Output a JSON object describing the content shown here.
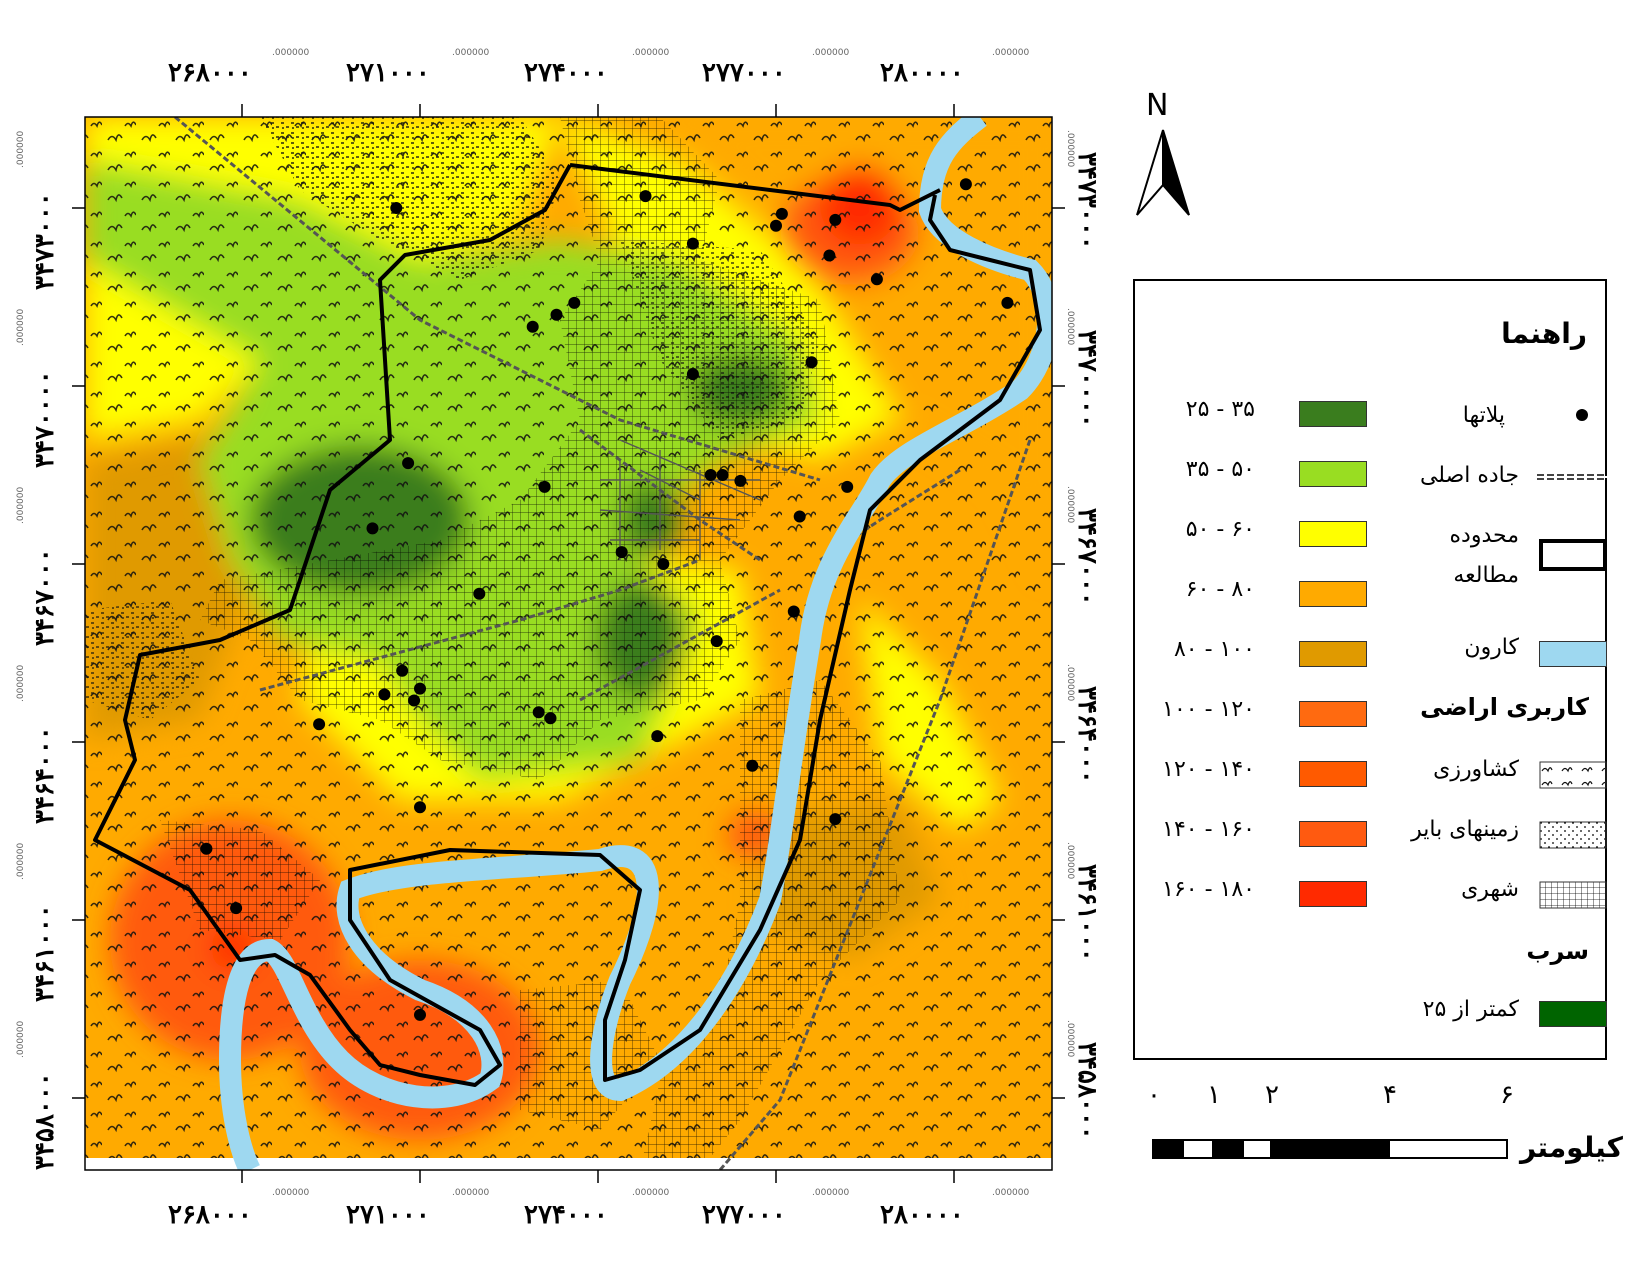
{
  "map": {
    "x_ticks": [
      "۲۶۸۰۰۰",
      "۲۷۱۰۰۰",
      "۲۷۴۰۰۰",
      "۲۷۷۰۰۰",
      "۲۸۰۰۰۰"
    ],
    "y_ticks": [
      "۳۴۷۳۰۰۰",
      "۳۴۷۰۰۰۰",
      "۳۴۶۷۰۰۰",
      "۳۴۶۴۰۰۰",
      "۳۴۶۱۰۰۰",
      "۳۴۵۸۰۰۰"
    ],
    "small_label": ".000000",
    "sample_points": [
      [
        270.6,
        3473.0
      ],
      [
        274.8,
        3473.2
      ],
      [
        275.6,
        3472.4
      ],
      [
        277.1,
        3472.9
      ],
      [
        277.0,
        3472.7
      ],
      [
        278.0,
        3472.8
      ],
      [
        277.9,
        3472.2
      ],
      [
        278.7,
        3471.8
      ],
      [
        280.2,
        3473.4
      ],
      [
        280.9,
        3471.4
      ],
      [
        273.6,
        3471.4
      ],
      [
        273.3,
        3471.2
      ],
      [
        272.9,
        3471.0
      ],
      [
        277.6,
        3470.4
      ],
      [
        275.6,
        3470.2
      ],
      [
        270.8,
        3468.7
      ],
      [
        273.1,
        3468.3
      ],
      [
        275.9,
        3468.5
      ],
      [
        276.1,
        3468.5
      ],
      [
        276.4,
        3468.4
      ],
      [
        278.2,
        3468.3
      ],
      [
        277.4,
        3467.8
      ],
      [
        270.2,
        3467.6
      ],
      [
        274.4,
        3467.2
      ],
      [
        275.1,
        3467.0
      ],
      [
        272.0,
        3466.5
      ],
      [
        277.3,
        3466.2
      ],
      [
        276.0,
        3465.7
      ],
      [
        270.7,
        3465.2
      ],
      [
        271.0,
        3464.9
      ],
      [
        270.4,
        3464.8
      ],
      [
        270.9,
        3464.7
      ],
      [
        273.0,
        3464.5
      ],
      [
        273.2,
        3464.4
      ],
      [
        269.3,
        3464.3
      ],
      [
        275.0,
        3464.1
      ],
      [
        276.6,
        3463.6
      ],
      [
        271.0,
        3462.9
      ],
      [
        278.0,
        3462.7
      ],
      [
        267.4,
        3462.2
      ],
      [
        267.9,
        3461.2
      ],
      [
        271.0,
        3459.4
      ]
    ]
  },
  "legend": {
    "title": "راهنما",
    "items": [
      {
        "label": "پلاتها"
      },
      {
        "label": "جاده اصلی"
      },
      {
        "label": "محدوده"
      },
      {
        "label": "مطالعه"
      },
      {
        "label": "کارون"
      }
    ],
    "landuse_title": "کاربری اراضی",
    "landuse": [
      {
        "label": "کشاورزی"
      },
      {
        "label": "زمینهای بایر"
      },
      {
        "label": "شهری"
      }
    ],
    "lead_title": "سرب",
    "lead_min_label": "کمتر از ۲۵",
    "ranges": [
      {
        "label": "۲۵ - ۳۵",
        "color": "#3a7d1e"
      },
      {
        "label": "۳۵ - ۵۰",
        "color": "#99dd22"
      },
      {
        "label": "۵۰ - ۶۰",
        "color": "#ffff00"
      },
      {
        "label": "۶۰ - ۸۰",
        "color": "#ffaa00"
      },
      {
        "label": "۸۰ - ۱۰۰",
        "color": "#e09a00"
      },
      {
        "label": "۱۰۰ - ۱۲۰",
        "color": "#ff6a10"
      },
      {
        "label": "۱۲۰ - ۱۴۰",
        "color": "#ff5a00"
      },
      {
        "label": "۱۴۰ - ۱۶۰",
        "color": "#ff5a10"
      },
      {
        "label": "۱۶۰ - ۱۸۰",
        "color": "#ff2a00"
      }
    ],
    "lead_min_color": "#006400",
    "karun_color": "#9ed8f0"
  },
  "north": {
    "label": "N"
  },
  "scale": {
    "numbers": [
      "۰",
      "۱",
      "۲",
      "۴",
      "۶"
    ],
    "unit": "کیلومتر"
  }
}
